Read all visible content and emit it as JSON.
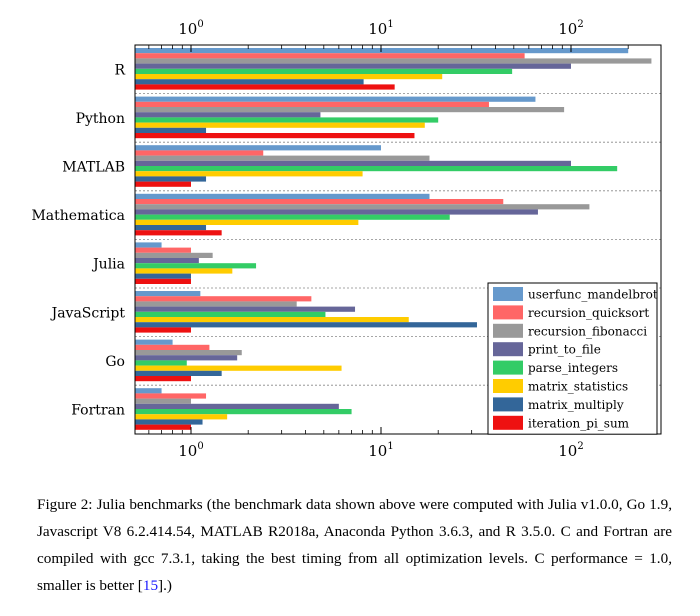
{
  "chart_data": {
    "type": "bar",
    "orientation": "horizontal",
    "x_scale": "log",
    "xlim": [
      0.5,
      260
    ],
    "x_ticks": [
      {
        "base": "10",
        "exp": "0"
      },
      {
        "base": "10",
        "exp": "1"
      },
      {
        "base": "10",
        "exp": "2"
      }
    ],
    "x_tick_values": [
      1,
      10,
      100
    ],
    "grid": "horizontal dashed between groups",
    "legend_position": "bottom-right",
    "categories": [
      "R",
      "Python",
      "MATLAB",
      "Mathematica",
      "Julia",
      "JavaScript",
      "Go",
      "Fortran"
    ],
    "series": [
      {
        "name": "userfunc_mandelbrot",
        "color": "#6699cc",
        "values": [
          200,
          65,
          10,
          18,
          0.7,
          1.12,
          0.8,
          0.7
        ]
      },
      {
        "name": "recursion_quicksort",
        "color": "#ff6666",
        "values": [
          57,
          37,
          2.4,
          44,
          1.0,
          4.3,
          1.25,
          1.2
        ]
      },
      {
        "name": "recursion_fibonacci",
        "color": "#999999",
        "values": [
          265,
          92,
          18,
          125,
          1.3,
          3.6,
          1.85,
          1.0
        ]
      },
      {
        "name": "print_to_file",
        "color": "#666699",
        "values": [
          100,
          4.8,
          100,
          67,
          1.1,
          7.3,
          1.75,
          6.0
        ]
      },
      {
        "name": "parse_integers",
        "color": "#33cc66",
        "values": [
          49,
          20,
          175,
          23,
          2.2,
          5.1,
          0.95,
          7.0
        ]
      },
      {
        "name": "matrix_statistics",
        "color": "#ffcc00",
        "values": [
          21,
          17,
          8.0,
          7.6,
          1.65,
          14,
          6.2,
          1.55
        ]
      },
      {
        "name": "matrix_multiply",
        "color": "#336699",
        "values": [
          8.1,
          1.2,
          1.2,
          1.2,
          1.0,
          32,
          1.45,
          1.15
        ]
      },
      {
        "name": "iteration_pi_sum",
        "color": "#ee1111",
        "values": [
          11.8,
          15,
          1.0,
          1.45,
          1.0,
          1.0,
          1.0,
          1.0
        ]
      }
    ]
  },
  "caption": {
    "text": "Figure 2: Julia benchmarks (the benchmark data shown above were computed with Julia v1.0.0, Go 1.9, Javascript V8 6.2.414.54, MATLAB R2018a, Anaconda Python 3.6.3, and R 3.5.0. C and Fortran are compiled with gcc 7.3.1, taking the best timing from all optimization levels. C performance = 1.0, smaller is better [",
    "citation": "15",
    "tail": "].)"
  }
}
